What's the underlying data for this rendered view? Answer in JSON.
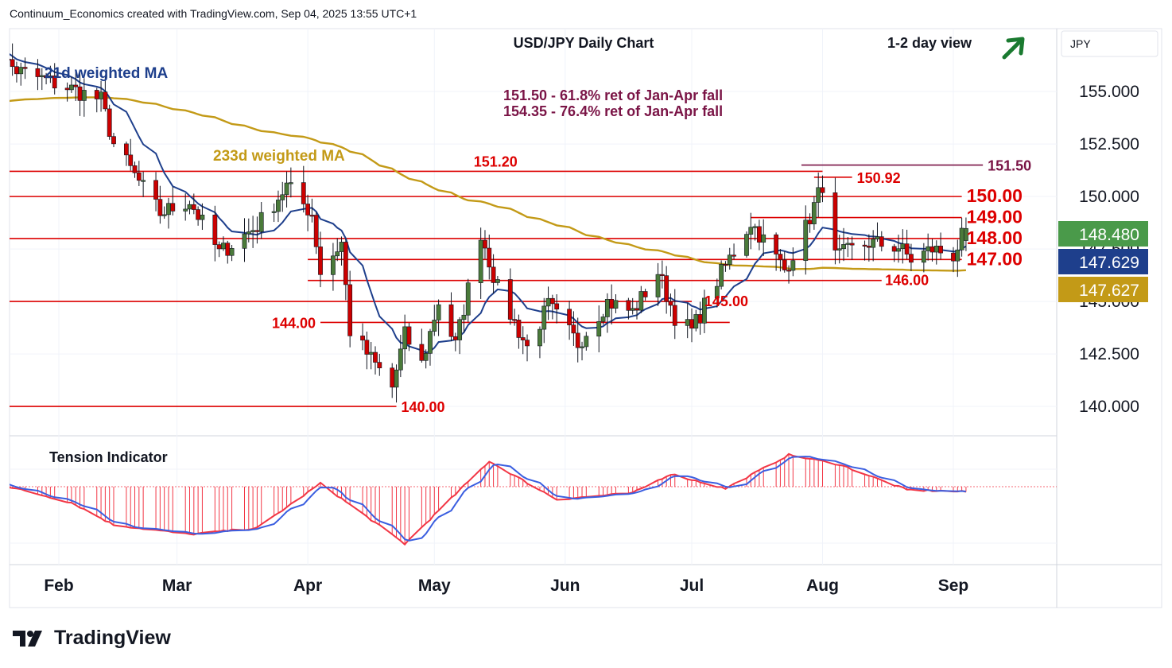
{
  "header": {
    "credit": "Continuum_Economics created with TradingView.com, Sep 04, 2025 13:55 UTC+1"
  },
  "title": "USD/JPY Daily Chart",
  "view": "1-2 day view",
  "currency": "JPY",
  "brand": "TradingView",
  "icons": {
    "outlook": "arrow-up-right-icon",
    "brand": "tradingview-logo-icon"
  },
  "colors": {
    "up": "#4a7a3a",
    "down": "#cc0000",
    "ma21": "#1e3f8c",
    "ma233": "#c39a17",
    "level": "#dd0000",
    "fib": "#7a1446"
  },
  "annotations": {
    "ma21": "21d weighted MA",
    "ma233": "233d weighted MA",
    "fib1": "151.50 - 61.8% ret of Jan-Apr fall",
    "fib2": "154.35 - 76.4% ret of Jan-Apr fall",
    "tension": "Tension Indicator"
  },
  "chart_data": {
    "type": "candlestick",
    "pair": "USD/JPY",
    "ylim": [
      138.6,
      158.0
    ],
    "yticks": [
      140,
      142.5,
      145,
      147.5,
      150,
      152.5,
      155
    ],
    "ytick_labels": [
      "140.000",
      "142.500",
      "145.000",
      "147.500",
      "150.000",
      "152.500",
      "155.000"
    ],
    "xaxis": [
      {
        "label": "Feb",
        "date": "2025-02-01"
      },
      {
        "label": "Mar",
        "date": "2025-03-01"
      },
      {
        "label": "Apr",
        "date": "2025-04-01"
      },
      {
        "label": "May",
        "date": "2025-05-01"
      },
      {
        "label": "Jun",
        "date": "2025-06-01"
      },
      {
        "label": "Jul",
        "date": "2025-07-01"
      },
      {
        "label": "Aug",
        "date": "2025-08-01"
      },
      {
        "label": "Sep",
        "date": "2025-09-01"
      }
    ],
    "price_tags": [
      {
        "value": 148.48,
        "label": "148.480",
        "color": "#4a9a4a"
      },
      {
        "value": 147.629,
        "label": "147.629",
        "color": "#1e3f8c"
      },
      {
        "value": 147.627,
        "label": "147.627",
        "color": "#c39a17"
      }
    ],
    "levels": [
      {
        "value": 151.5,
        "label": "151.50",
        "color": "#7a1446",
        "from": "2025-07-27",
        "to": "2025-09-08",
        "label_pos": "right",
        "bold": false
      },
      {
        "value": 151.2,
        "label": "151.20",
        "color": "#dd0000",
        "from": "2025-01-01",
        "to": "2025-08-01",
        "label_pos": "above",
        "bold": false
      },
      {
        "value": 150.92,
        "label": "150.92",
        "color": "#dd0000",
        "from": "2025-07-30",
        "to": "2025-08-08",
        "label_pos": "right",
        "bold": false
      },
      {
        "value": 150.0,
        "label": "150.00",
        "color": "#dd0000",
        "from": "2025-01-01",
        "to": "2025-09-03",
        "label_pos": "right",
        "bold": true
      },
      {
        "value": 149.0,
        "label": "149.00",
        "color": "#dd0000",
        "from": "2025-07-15",
        "to": "2025-09-03",
        "label_pos": "right",
        "bold": true
      },
      {
        "value": 148.0,
        "label": "148.00",
        "color": "#dd0000",
        "from": "2025-01-01",
        "to": "2025-09-03",
        "label_pos": "right",
        "bold": true
      },
      {
        "value": 147.0,
        "label": "147.00",
        "color": "#dd0000",
        "from": "2025-04-01",
        "to": "2025-09-03",
        "label_pos": "right",
        "bold": true
      },
      {
        "value": 146.0,
        "label": "146.00",
        "color": "#dd0000",
        "from": "2025-04-01",
        "to": "2025-08-15",
        "label_pos": "below-right",
        "bold": false
      },
      {
        "value": 145.0,
        "label": "145.00",
        "color": "#dd0000",
        "from": "2025-01-01",
        "to": "2025-07-01",
        "label_pos": "right-offset",
        "bold": false
      },
      {
        "value": 144.0,
        "label": "144.00",
        "color": "#dd0000",
        "from": "2025-04-04",
        "to": "2025-07-10",
        "label_pos": "left",
        "bold": false
      },
      {
        "value": 140.0,
        "label": "140.00",
        "color": "#dd0000",
        "from": "2025-01-01",
        "to": "2025-04-22",
        "label_pos": "right",
        "bold": false
      }
    ],
    "keypoints": [
      [
        "2025-01-14",
        157.3
      ],
      [
        "2025-01-22",
        156.0
      ],
      [
        "2025-02-03",
        155.2
      ],
      [
        "2025-02-11",
        154.6
      ],
      [
        "2025-02-14",
        152.5
      ],
      [
        "2025-02-25",
        149.2
      ],
      [
        "2025-03-04",
        149.8
      ],
      [
        "2025-03-11",
        147.3
      ],
      [
        "2025-03-20",
        148.6
      ],
      [
        "2025-03-27",
        150.5
      ],
      [
        "2025-04-02",
        149.2
      ],
      [
        "2025-04-04",
        146.4
      ],
      [
        "2025-04-09",
        147.8
      ],
      [
        "2025-04-11",
        143.6
      ],
      [
        "2025-04-21",
        140.9
      ],
      [
        "2025-04-24",
        143.4
      ],
      [
        "2025-04-28",
        142.0
      ],
      [
        "2025-05-02",
        145.0
      ],
      [
        "2025-05-06",
        142.9
      ],
      [
        "2025-05-12",
        148.3
      ],
      [
        "2025-05-16",
        145.6
      ],
      [
        "2025-05-23",
        142.8
      ],
      [
        "2025-05-28",
        144.8
      ],
      [
        "2025-06-04",
        143.0
      ],
      [
        "2025-06-11",
        145.0
      ],
      [
        "2025-06-17",
        144.5
      ],
      [
        "2025-06-23",
        146.4
      ],
      [
        "2025-06-27",
        144.3
      ],
      [
        "2025-07-01",
        143.6
      ],
      [
        "2025-07-07",
        146.0
      ],
      [
        "2025-07-15",
        148.8
      ],
      [
        "2025-07-23",
        146.5
      ],
      [
        "2025-07-28",
        148.5
      ],
      [
        "2025-08-01",
        150.6
      ],
      [
        "2025-08-04",
        147.1
      ],
      [
        "2025-08-12",
        147.8
      ],
      [
        "2025-08-19",
        147.6
      ],
      [
        "2025-08-22",
        147.0
      ],
      [
        "2025-08-27",
        147.5
      ],
      [
        "2025-09-01",
        147.2
      ],
      [
        "2025-09-04",
        148.48
      ]
    ],
    "tension": {
      "ylim": [
        -1.0,
        1.0
      ],
      "keypoints": [
        [
          "2025-01-14",
          0.1
        ],
        [
          "2025-02-04",
          -0.25
        ],
        [
          "2025-02-14",
          -0.6
        ],
        [
          "2025-03-04",
          -0.75
        ],
        [
          "2025-03-20",
          -0.65
        ],
        [
          "2025-04-04",
          0.05
        ],
        [
          "2025-04-24",
          -0.9
        ],
        [
          "2025-05-14",
          0.4
        ],
        [
          "2025-05-30",
          -0.2
        ],
        [
          "2025-06-17",
          -0.1
        ],
        [
          "2025-06-26",
          0.2
        ],
        [
          "2025-07-09",
          -0.03
        ],
        [
          "2025-07-24",
          0.5
        ],
        [
          "2025-08-05",
          0.35
        ],
        [
          "2025-08-21",
          -0.05
        ],
        [
          "2025-09-04",
          -0.08
        ]
      ]
    }
  }
}
